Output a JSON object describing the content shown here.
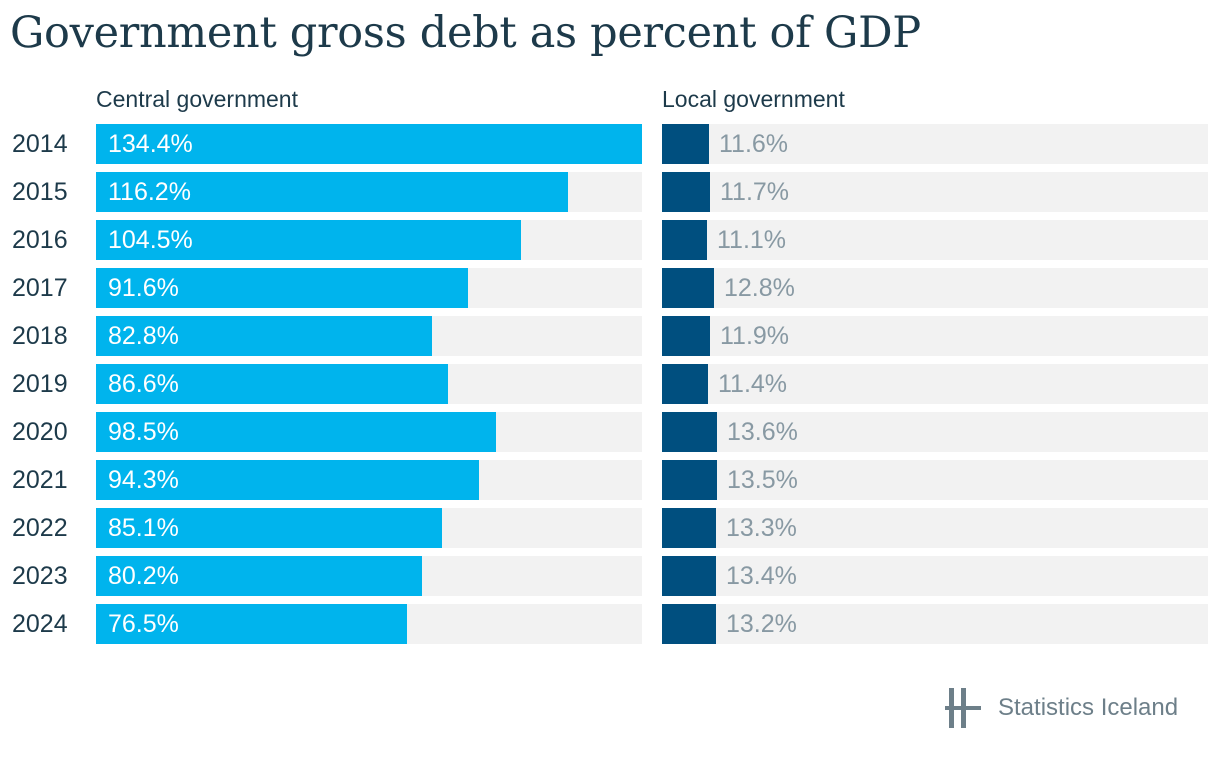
{
  "chart_data": {
    "type": "bar",
    "orientation": "horizontal",
    "title": "Government gross debt as percent of GDP",
    "categories": [
      "2014",
      "2015",
      "2016",
      "2017",
      "2018",
      "2019",
      "2020",
      "2021",
      "2022",
      "2023",
      "2024"
    ],
    "series": [
      {
        "name": "Central government",
        "values": [
          134.4,
          116.2,
          104.5,
          91.6,
          82.8,
          86.6,
          98.5,
          94.3,
          85.1,
          80.2,
          76.5
        ],
        "labels": [
          "134.4%",
          "116.2%",
          "104.5%",
          "91.6%",
          "82.8%",
          "86.6%",
          "98.5%",
          "94.3%",
          "85.1%",
          "80.2%",
          "76.5%"
        ],
        "color": "#00b4ed"
      },
      {
        "name": "Local government",
        "values": [
          11.6,
          11.7,
          11.1,
          12.8,
          11.9,
          11.4,
          13.6,
          13.5,
          13.3,
          13.4,
          13.2
        ],
        "labels": [
          "11.6%",
          "11.7%",
          "11.1%",
          "12.8%",
          "11.9%",
          "11.4%",
          "13.6%",
          "13.5%",
          "13.3%",
          "13.4%",
          "13.2%"
        ],
        "color": "#004f7f"
      }
    ],
    "xlim": [
      0,
      134.4
    ],
    "grid": false,
    "legend": "none"
  },
  "footer": {
    "source": "Statistics Iceland",
    "logo_icon": "statistics-iceland-logo-icon"
  },
  "colors": {
    "title": "#1d3a4a",
    "track": "#f2f2f2",
    "local_label": "#8899a3"
  }
}
